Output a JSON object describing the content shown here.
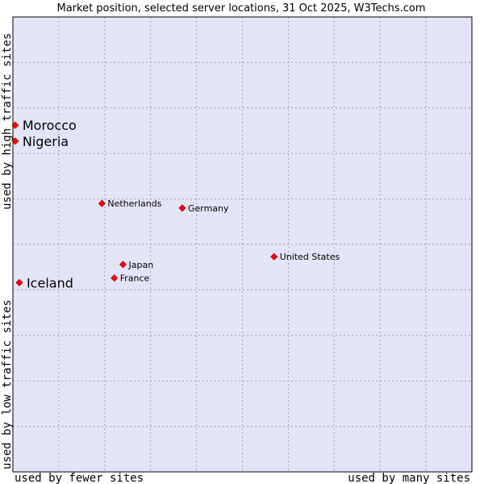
{
  "chart_data": {
    "type": "scatter",
    "title": "Market position, selected server locations, 31 Oct 2025, W3Techs.com",
    "xlabel_left": "used by fewer sites",
    "xlabel_right": "used by many sites",
    "ylabel_top": "used by high traffic sites",
    "ylabel_bottom": "used by low traffic sites",
    "xlim": [
      0,
      100
    ],
    "ylim": [
      0,
      100
    ],
    "grid": true,
    "colors": {
      "plot_bg": "#e4e4f8",
      "grid": "#a0a0b4",
      "marker": "#ff0000",
      "marker_edge": "#b00000"
    },
    "points": [
      {
        "label": "Morocco",
        "x": 0.5,
        "y": 76.2,
        "emphasis": true
      },
      {
        "label": "Nigeria",
        "x": 0.5,
        "y": 72.7,
        "emphasis": true
      },
      {
        "label": "Netherlands",
        "x": 19.4,
        "y": 59.0,
        "emphasis": false
      },
      {
        "label": "Germany",
        "x": 36.9,
        "y": 58.0,
        "emphasis": false
      },
      {
        "label": "United States",
        "x": 56.9,
        "y": 47.3,
        "emphasis": false
      },
      {
        "label": "Japan",
        "x": 24.0,
        "y": 45.6,
        "emphasis": false
      },
      {
        "label": "France",
        "x": 22.1,
        "y": 42.6,
        "emphasis": false
      },
      {
        "label": "Iceland",
        "x": 1.4,
        "y": 41.6,
        "emphasis": true
      }
    ]
  }
}
